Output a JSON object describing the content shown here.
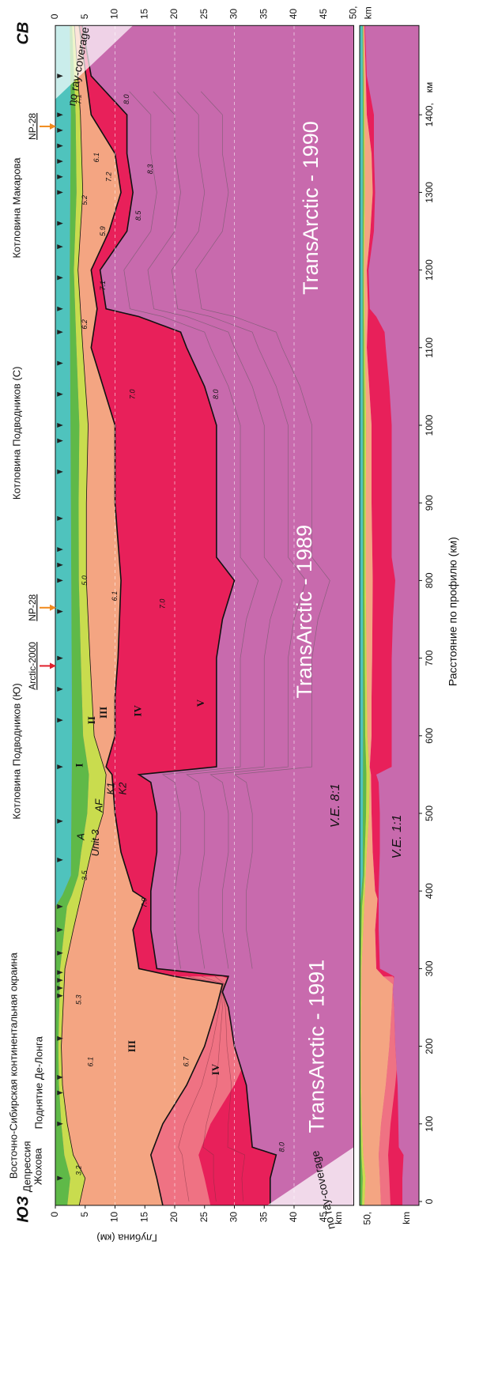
{
  "corners": {
    "sw": "ЮЗ",
    "ne": "СВ"
  },
  "regions": [
    "Восточно-Сибирская континентальная окраина",
    "Поднятие Де-Лонга",
    "Котловина Подводников (Ю)",
    "Котловина Подводников (С)",
    "Котловина Макарова"
  ],
  "zhokhov_depression": [
    "Депрессия",
    "Жохова"
  ],
  "stations": [
    "Arctic-2000",
    "NP-28",
    "NP-28"
  ],
  "profiles": [
    "TransArctic - 1991",
    "TransArctic - 1989",
    "TransArctic - 1990"
  ],
  "exaggeration": [
    "V.E. 8:1",
    "V.E. 1:1"
  ],
  "no_coverage": [
    "no ray-coverage",
    "no ray-coverage"
  ],
  "depth_axis": {
    "title": "Глубина (км)",
    "ticks": [
      "0",
      "5",
      "10",
      "15",
      "20",
      "25",
      "30",
      "35",
      "40",
      "45"
    ],
    "end_tick": "50,",
    "unit": "km",
    "inset_labels": [
      "50,",
      "km"
    ]
  },
  "distance_axis": {
    "title": "Расстояние по профилю (км)",
    "ticks": [
      "0",
      "100",
      "200",
      "300",
      "400",
      "500",
      "600",
      "700",
      "800",
      "900",
      "1000",
      "1100",
      "1200",
      "1300",
      "1400,"
    ],
    "unit": "км"
  },
  "units": [
    "A",
    "Unit 3",
    "AF",
    "K1",
    "K2"
  ],
  "layers": [
    "I",
    "II",
    "III",
    "IV",
    "V",
    "III",
    "IV"
  ],
  "velocities": [
    "3.2",
    "6.1",
    "5.3",
    "6.7",
    "8.0",
    "3.5",
    "7.0",
    "5.0",
    "6.1",
    "7.0",
    "7.0",
    "8.0",
    "6.2",
    "7.1",
    "5.9",
    "8.5",
    "5.2",
    "7.2",
    "8.3",
    "6.1",
    "7.1",
    "8.0"
  ]
}
